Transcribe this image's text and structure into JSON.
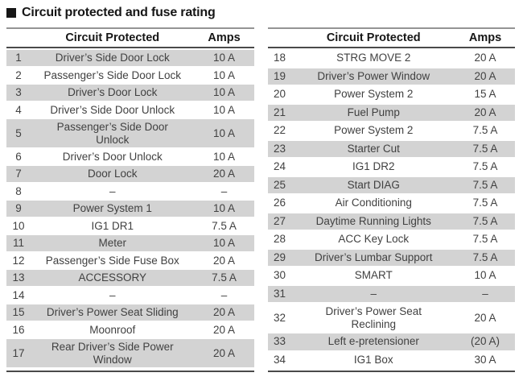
{
  "title": "Circuit protected and fuse rating",
  "colors": {
    "row_shade": "#d3d3d3",
    "rule_light": "#949494",
    "rule_dark": "#4a4a4a",
    "body_text": "#414141",
    "heading_text": "#161616"
  },
  "tables": [
    {
      "headers": {
        "circuit": "Circuit Protected",
        "amps": "Amps"
      },
      "rows": [
        {
          "num": "1",
          "circuit": "Driver’s Side Door Lock",
          "amps": "10 A"
        },
        {
          "num": "2",
          "circuit": "Passenger’s Side Door Lock",
          "amps": "10 A"
        },
        {
          "num": "3",
          "circuit": "Driver’s Door Lock",
          "amps": "10 A"
        },
        {
          "num": "4",
          "circuit": "Driver’s Side Door Unlock",
          "amps": "10 A"
        },
        {
          "num": "5",
          "circuit": "Passenger’s Side Door\nUnlock",
          "amps": "10 A"
        },
        {
          "num": "6",
          "circuit": "Driver’s Door Unlock",
          "amps": "10 A"
        },
        {
          "num": "7",
          "circuit": "Door Lock",
          "amps": "20 A"
        },
        {
          "num": "8",
          "circuit": "–",
          "amps": "–"
        },
        {
          "num": "9",
          "circuit": "Power System 1",
          "amps": "10 A"
        },
        {
          "num": "10",
          "circuit": "IG1 DR1",
          "amps": "7.5 A"
        },
        {
          "num": "11",
          "circuit": "Meter",
          "amps": "10 A"
        },
        {
          "num": "12",
          "circuit": "Passenger’s Side Fuse Box",
          "amps": "20 A"
        },
        {
          "num": "13",
          "circuit": "ACCESSORY",
          "amps": "7.5 A"
        },
        {
          "num": "14",
          "circuit": "–",
          "amps": "–"
        },
        {
          "num": "15",
          "circuit": "Driver’s Power Seat Sliding",
          "amps": "20 A"
        },
        {
          "num": "16",
          "circuit": "Moonroof",
          "amps": "20 A"
        },
        {
          "num": "17",
          "circuit": "Rear Driver’s Side Power\nWindow",
          "amps": "20 A"
        }
      ]
    },
    {
      "headers": {
        "circuit": "Circuit Protected",
        "amps": "Amps"
      },
      "rows": [
        {
          "num": "18",
          "circuit": "STRG MOVE 2",
          "amps": "20 A"
        },
        {
          "num": "19",
          "circuit": "Driver’s Power Window",
          "amps": "20 A"
        },
        {
          "num": "20",
          "circuit": "Power System 2",
          "amps": "15 A"
        },
        {
          "num": "21",
          "circuit": "Fuel Pump",
          "amps": "20 A"
        },
        {
          "num": "22",
          "circuit": "Power System 2",
          "amps": "7.5 A"
        },
        {
          "num": "23",
          "circuit": "Starter Cut",
          "amps": "7.5 A"
        },
        {
          "num": "24",
          "circuit": "IG1 DR2",
          "amps": "7.5 A"
        },
        {
          "num": "25",
          "circuit": "Start DIAG",
          "amps": "7.5 A"
        },
        {
          "num": "26",
          "circuit": "Air Conditioning",
          "amps": "7.5 A"
        },
        {
          "num": "27",
          "circuit": "Daytime Running Lights",
          "amps": "7.5 A"
        },
        {
          "num": "28",
          "circuit": "ACC Key Lock",
          "amps": "7.5 A"
        },
        {
          "num": "29",
          "circuit": "Driver’s Lumbar Support",
          "amps": "7.5 A"
        },
        {
          "num": "30",
          "circuit": "SMART",
          "amps": "10 A"
        },
        {
          "num": "31",
          "circuit": "–",
          "amps": "–"
        },
        {
          "num": "32",
          "circuit": "Driver’s Power Seat\nReclining",
          "amps": "20 A"
        },
        {
          "num": "33",
          "circuit": "Left e-pretensioner",
          "amps": "(20 A)"
        },
        {
          "num": "34",
          "circuit": "IG1 Box",
          "amps": "30 A"
        }
      ]
    }
  ]
}
